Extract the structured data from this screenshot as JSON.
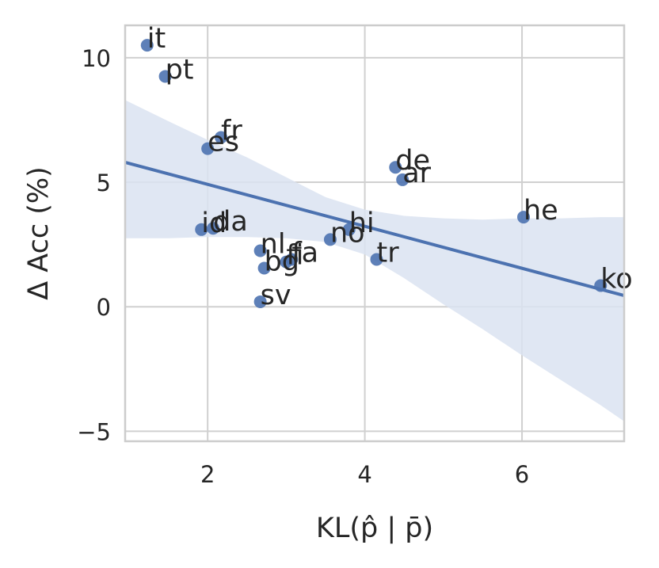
{
  "chart_data": {
    "type": "scatter",
    "title": "",
    "xlabel": "KL(p̂ | p̄)",
    "ylabel": "Δ Acc (%)",
    "xlim": [
      0.95,
      7.3
    ],
    "ylim": [
      -5.4,
      11.3
    ],
    "xticks": [
      2,
      4,
      6
    ],
    "yticks": [
      10,
      5,
      0,
      -5
    ],
    "ytick_labels": [
      "10",
      "5",
      "0",
      "−5"
    ],
    "grid": true,
    "legend": "none",
    "colors": {
      "points": "#4c72b0",
      "line": "#4c72b0",
      "band": "#dbe3f1",
      "grid": "#d0d0d0",
      "spine": "#cccccc"
    },
    "points": [
      {
        "label": "it",
        "x": 1.23,
        "y": 10.5
      },
      {
        "label": "pt",
        "x": 1.46,
        "y": 9.25
      },
      {
        "label": "fr",
        "x": 2.17,
        "y": 6.8
      },
      {
        "label": "es",
        "x": 2.0,
        "y": 6.35
      },
      {
        "label": "id",
        "x": 1.92,
        "y": 3.1
      },
      {
        "label": "da",
        "x": 2.07,
        "y": 3.15
      },
      {
        "label": "nl",
        "x": 2.67,
        "y": 2.25
      },
      {
        "label": "bg",
        "x": 2.72,
        "y": 1.55
      },
      {
        "label": "fi",
        "x": 3.0,
        "y": 1.8
      },
      {
        "label": "fa",
        "x": 3.07,
        "y": 1.9
      },
      {
        "label": "sv",
        "x": 2.67,
        "y": 0.2
      },
      {
        "label": "no",
        "x": 3.56,
        "y": 2.7
      },
      {
        "label": "hi",
        "x": 3.8,
        "y": 3.1
      },
      {
        "label": "tr",
        "x": 4.15,
        "y": 1.9
      },
      {
        "label": "de",
        "x": 4.39,
        "y": 5.6
      },
      {
        "label": "ar",
        "x": 4.48,
        "y": 5.1
      },
      {
        "label": "he",
        "x": 6.02,
        "y": 3.6
      },
      {
        "label": "ko",
        "x": 7.0,
        "y": 0.85
      }
    ],
    "regression": {
      "x": [
        0.95,
        7.3
      ],
      "y": [
        5.8,
        0.45
      ]
    },
    "confidence_band": {
      "x": [
        0.95,
        1.5,
        2.0,
        2.5,
        3.0,
        3.5,
        4.0,
        4.5,
        5.0,
        5.5,
        6.0,
        6.5,
        7.0,
        7.3
      ],
      "upper": [
        8.3,
        7.45,
        6.7,
        6.0,
        5.2,
        4.4,
        3.9,
        3.65,
        3.55,
        3.5,
        3.55,
        3.55,
        3.6,
        3.6
      ],
      "lower": [
        2.75,
        2.75,
        2.8,
        2.8,
        2.75,
        2.6,
        2.1,
        1.15,
        0.1,
        -0.9,
        -1.95,
        -2.95,
        -3.95,
        -4.6
      ]
    }
  }
}
